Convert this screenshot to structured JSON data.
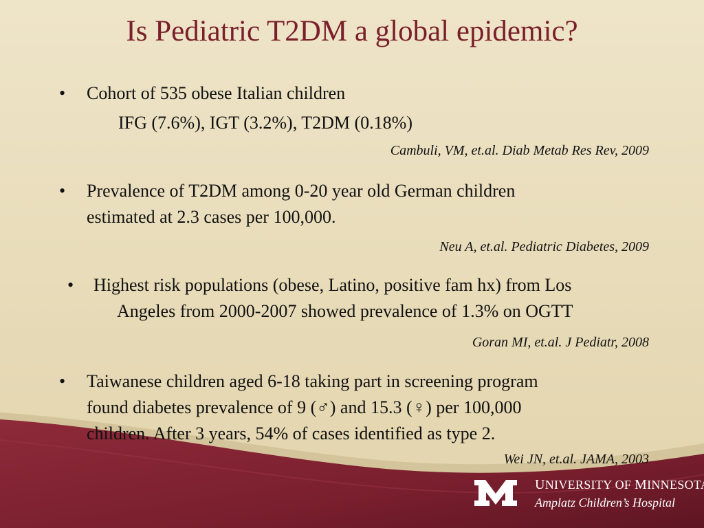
{
  "slide": {
    "title": "Is Pediatric T2DM a global epidemic?",
    "colors": {
      "background": "#e8dcb9",
      "maroon": "#7a1f2b",
      "title": "#7a1f2b"
    },
    "bullets": [
      {
        "marker": "•",
        "lines": [
          "Cohort of 535 obese Italian children"
        ],
        "detail": "IFG (7.6%), IGT (3.2%), T2DM (0.18%)",
        "citation": "Cambuli, VM, et.al. Diab Metab Res Rev, 2009"
      },
      {
        "marker": "•",
        "lines": [
          "Prevalence of T2DM among 0-20 year old German children",
          "estimated at 2.3 cases per 100,000."
        ],
        "citation": "Neu A, et.al. Pediatric Diabetes, 2009"
      },
      {
        "marker": "•",
        "lines": [
          "Highest risk populations (obese, Latino, positive fam hx) from Los",
          "Angeles from 2000-2007 showed prevalence of 1.3% on OGTT"
        ],
        "citation": "Goran MI, et.al. J Pediatr, 2008"
      },
      {
        "marker": "•",
        "lines": [
          "Taiwanese children aged 6-18 taking part in screening program",
          "found diabetes prevalence of 9 (♂) and 15.3 (♀) per 100,000",
          "children.  After 3 years, 54% of cases identified as type 2."
        ],
        "citation": "Wei JN, et.al. JAMA, 2003"
      }
    ]
  },
  "footer": {
    "logo_icon": "university-of-minnesota-m-logo",
    "logo_letter": "M",
    "university_first_cap": "U",
    "university_rest1": "NIVERSITY OF ",
    "university_cap2": "M",
    "university_rest2": "INNESOTA",
    "hospital": "Amplatz Children’s Hospital"
  }
}
